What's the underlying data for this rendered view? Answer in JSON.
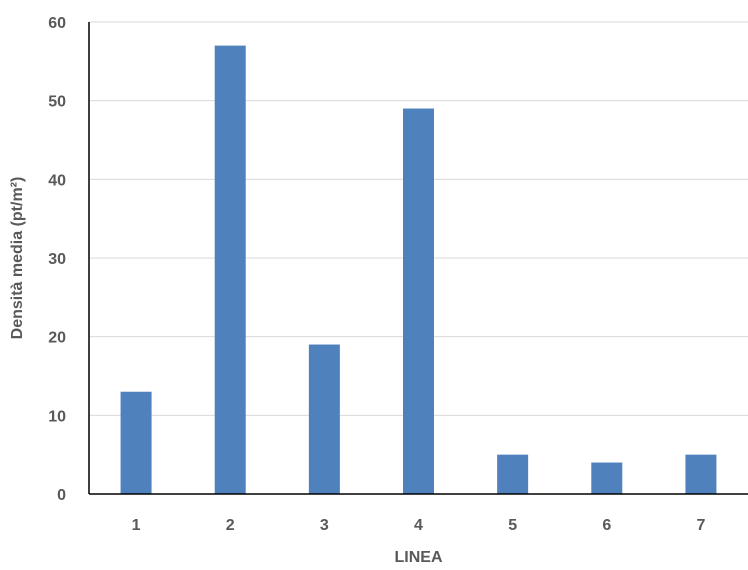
{
  "chart_data": {
    "type": "bar",
    "categories": [
      "1",
      "2",
      "3",
      "4",
      "5",
      "6",
      "7"
    ],
    "values": [
      13,
      57,
      19,
      49,
      5,
      4,
      5
    ],
    "title": "",
    "xlabel": "LINEA",
    "ylabel": "Densità media (pt/m²)",
    "ylim": [
      0,
      60
    ],
    "yticks": [
      "0",
      "10",
      "20",
      "30",
      "40",
      "50",
      "60"
    ],
    "grid": true,
    "legend": "none",
    "colors": {
      "bar": "#4f81bd",
      "grid": "#d9d9d9",
      "axis": "#000000",
      "text": "#595959"
    }
  }
}
